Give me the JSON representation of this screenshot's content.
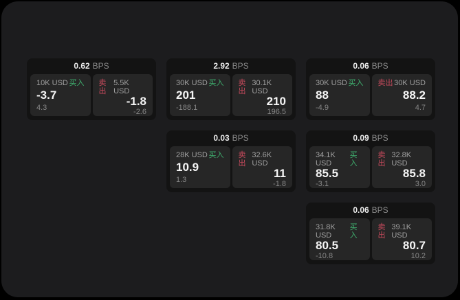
{
  "labels": {
    "buy": "买入",
    "sell": "卖出",
    "bps_unit": "BPS"
  },
  "colors": {
    "buy_green": "#3fae6e",
    "sell_red": "#c64a5c",
    "window_bg": "#1c1c1e",
    "card_bg": "#131313",
    "panel_bg": "#262626"
  },
  "cards": [
    {
      "bps": "0.62",
      "buy": {
        "amount": "10K USD",
        "value": "-3.7",
        "sub": "4.3"
      },
      "sell": {
        "amount": "5.5K USD",
        "value": "-1.8",
        "sub": "-2.6"
      }
    },
    {
      "bps": "2.92",
      "buy": {
        "amount": "30K USD",
        "value": "201",
        "sub": "-188.1"
      },
      "sell": {
        "amount": "30.1K USD",
        "value": "210",
        "sub": "196.5"
      }
    },
    {
      "bps": "0.06",
      "buy": {
        "amount": "30K USD",
        "value": "88",
        "sub": "-4.9"
      },
      "sell": {
        "amount": "30K USD",
        "value": "88.2",
        "sub": "4.7"
      }
    },
    {
      "bps": "0.03",
      "buy": {
        "amount": "28K USD",
        "value": "10.9",
        "sub": "1.3"
      },
      "sell": {
        "amount": "32.6K USD",
        "value": "11",
        "sub": "-1.8"
      }
    },
    {
      "bps": "0.09",
      "buy": {
        "amount": "34.1K USD",
        "value": "85.5",
        "sub": "-3.1"
      },
      "sell": {
        "amount": "32.8K USD",
        "value": "85.8",
        "sub": "3.0"
      }
    },
    {
      "bps": "0.06",
      "buy": {
        "amount": "31.8K USD",
        "value": "80.5",
        "sub": "-10.8"
      },
      "sell": {
        "amount": "39.1K USD",
        "value": "80.7",
        "sub": "10.2"
      }
    }
  ]
}
